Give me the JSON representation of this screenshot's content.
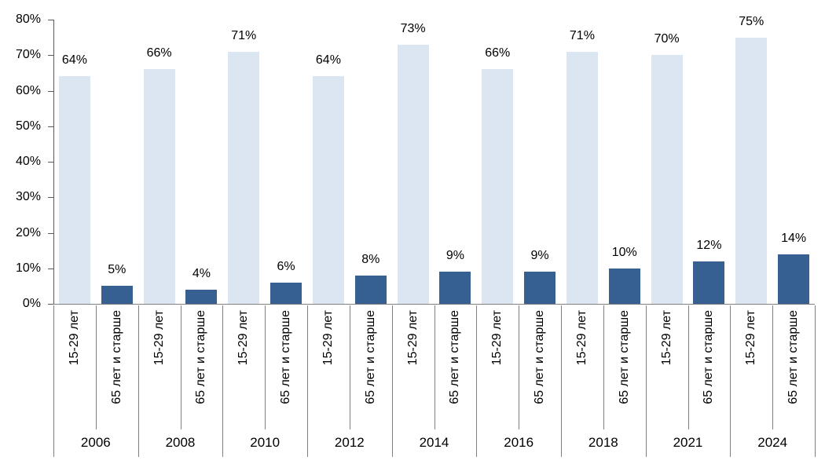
{
  "chart_data": {
    "type": "bar",
    "title": "",
    "categories": [
      "2006",
      "2008",
      "2010",
      "2012",
      "2014",
      "2016",
      "2018",
      "2021",
      "2024"
    ],
    "series": [
      {
        "name": "15-29 лет",
        "color": "#dce6f2",
        "values": [
          64,
          66,
          71,
          64,
          73,
          66,
          71,
          70,
          75
        ]
      },
      {
        "name": "65 лет и старше",
        "color": "#366092",
        "values": [
          5,
          4,
          6,
          8,
          9,
          9,
          10,
          12,
          14
        ]
      }
    ],
    "value_suffix": "%",
    "ylim": [
      0,
      80
    ],
    "ytick_step": 10,
    "ytick_labels": [
      "0%",
      "10%",
      "20%",
      "30%",
      "40%",
      "50%",
      "60%",
      "70%",
      "80%"
    ],
    "grid": false,
    "legend_position": "none",
    "xlabel": "",
    "ylabel": "",
    "x_label_layout": "series name rotated 90deg under each bar, year centered under each group"
  },
  "colors": {
    "background": "#ffffff",
    "axis_line": "#595959",
    "separator_line": "#808080",
    "label_text": "#000000"
  }
}
